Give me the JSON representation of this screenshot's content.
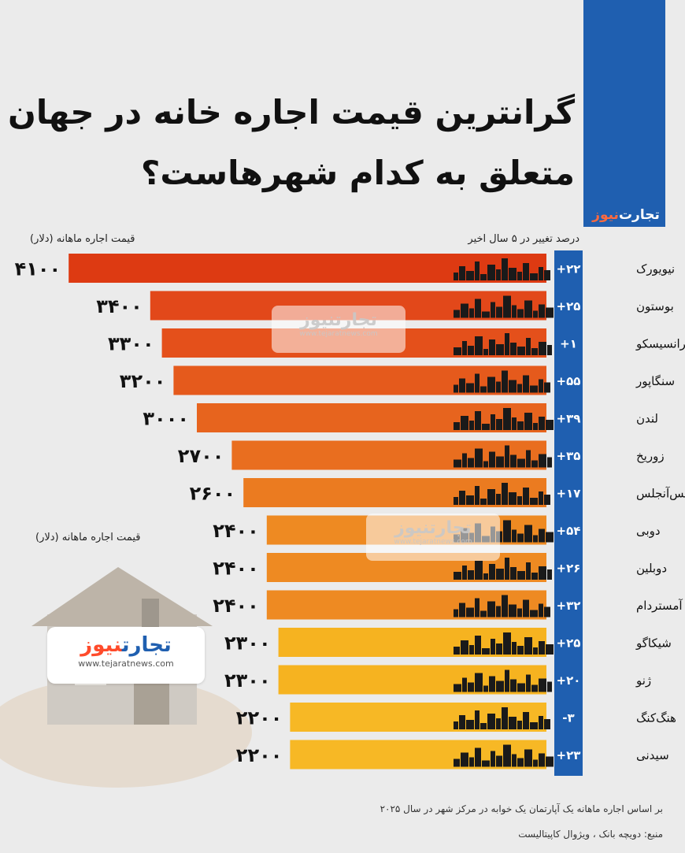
{
  "brand": {
    "name_part1": "تجارت",
    "name_part2": "نیوز",
    "url": "www.tejaratnews.com"
  },
  "title_line1": "گرانترین قیمت اجاره خانه در جهان",
  "title_line2": "متعلق به کدام شهرهاست؟",
  "header_change": "درصد تغییر در ۵ سال اخیر",
  "header_price": "قیمت اجاره ماهانه (دلار)",
  "footnote": "بر اساس اجاره ماهانه یک آپارتمان یک خوابه در مرکز شهر در سال ۲۰۲۵",
  "source": "منبع: دویچه بانک ، ویژوال کاپیتالیست",
  "colors": {
    "brand_blue": "#1f5fb0",
    "bar_high": "#dd3a12",
    "bar_low": "#f6b320",
    "skyline": "#1a1a1a"
  },
  "chart_data": {
    "type": "bar",
    "orientation": "horizontal",
    "categories": [
      "نیویورک",
      "بوستون",
      "سانفرانسیسکو",
      "سنگاپور",
      "لندن",
      "زوریخ",
      "لس‌آنجلس",
      "دوبی",
      "دوبلین",
      "آمستردام",
      "شیکاگو",
      "ژنو",
      "هنگ‌کنگ",
      "سیدنی"
    ],
    "values": [
      4100,
      3400,
      3300,
      3200,
      3000,
      2700,
      2600,
      2400,
      2400,
      2400,
      2300,
      2300,
      2200,
      2200
    ],
    "value_labels": [
      "۴۱۰۰",
      "۳۴۰۰",
      "۳۳۰۰",
      "۳۲۰۰",
      "۳۰۰۰",
      "۲۷۰۰",
      "۲۶۰۰",
      "۲۴۰۰",
      "۲۴۰۰",
      "۲۴۰۰",
      "۲۳۰۰",
      "۲۳۰۰",
      "۲۲۰۰",
      "۲۲۰۰"
    ],
    "change_percent": [
      22,
      25,
      1,
      55,
      39,
      35,
      17,
      54,
      26,
      32,
      25,
      20,
      -3,
      23
    ],
    "change_labels": [
      "+۲۲",
      "+۲۵",
      "+۱",
      "+۵۵",
      "+۳۹",
      "+۳۵",
      "+۱۷",
      "+۵۴",
      "+۲۶",
      "+۳۲",
      "+۲۵",
      "+۲۰",
      "-۳",
      "+۲۳"
    ],
    "bar_colors": [
      "#dd3a12",
      "#e2481a",
      "#e4501b",
      "#e55a1c",
      "#e7641e",
      "#e96e1f",
      "#eb7b20",
      "#ee8a22",
      "#ee8a22",
      "#ee8a22",
      "#f6b320",
      "#f6b320",
      "#f7b825",
      "#f7b825"
    ]
  }
}
